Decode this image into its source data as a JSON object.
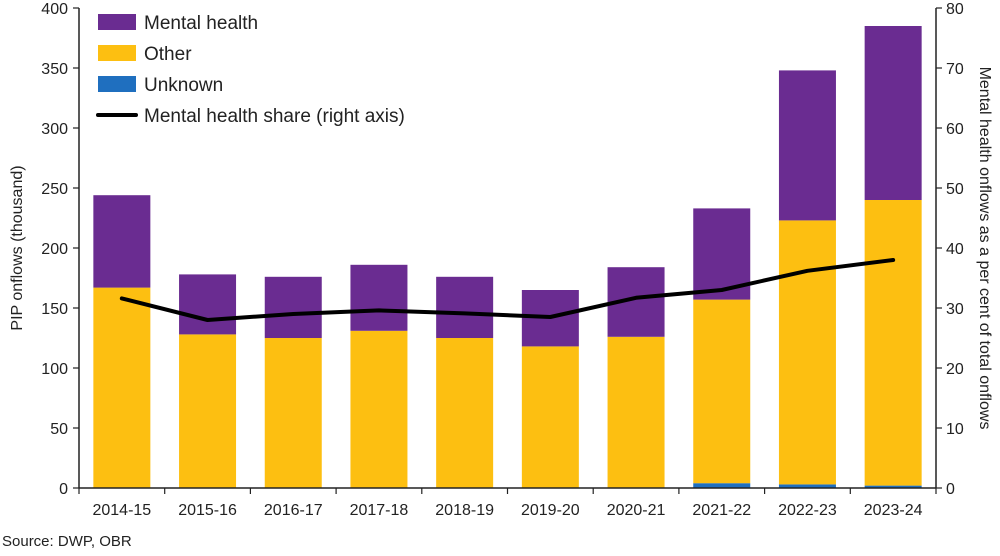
{
  "chart_data": {
    "type": "bar",
    "stacked": true,
    "categories": [
      "2014-15",
      "2015-16",
      "2016-17",
      "2017-18",
      "2018-19",
      "2019-20",
      "2020-21",
      "2021-22",
      "2022-23",
      "2023-24"
    ],
    "series": [
      {
        "name": "Unknown",
        "color": "#1f6fbf",
        "values": [
          0,
          0,
          0,
          0,
          0,
          0,
          0,
          4,
          3,
          2
        ]
      },
      {
        "name": "Other",
        "color": "#fdbf11",
        "values": [
          167,
          128,
          125,
          131,
          125,
          118,
          126,
          153,
          220,
          238
        ]
      },
      {
        "name": "Mental health",
        "color": "#6a2c91",
        "values": [
          77,
          50,
          51,
          55,
          51,
          47,
          58,
          76,
          125,
          145
        ]
      }
    ],
    "line_series": {
      "name": "Mental health share (right axis)",
      "color": "#000000",
      "axis": "right",
      "values": [
        31.6,
        28.0,
        29.0,
        29.6,
        29.1,
        28.5,
        31.7,
        33.0,
        36.2,
        38.0
      ]
    },
    "legend": [
      {
        "label": "Mental health",
        "kind": "box",
        "color": "#6a2c91"
      },
      {
        "label": "Other",
        "kind": "box",
        "color": "#fdbf11"
      },
      {
        "label": "Unknown",
        "kind": "box",
        "color": "#1f6fbf"
      },
      {
        "label": "Mental health share (right axis)",
        "kind": "line",
        "color": "#000000"
      }
    ],
    "legend_position": "top-left",
    "ylabel": "PIP onflows (thousand)",
    "y2label": "Mental health onflows as a per cent of total onflows",
    "ylim": [
      0,
      400
    ],
    "y2lim": [
      0,
      80
    ],
    "yticks": [
      0,
      50,
      100,
      150,
      200,
      250,
      300,
      350,
      400
    ],
    "y2ticks": [
      0,
      10,
      20,
      30,
      40,
      50,
      60,
      70,
      80
    ],
    "grid": false,
    "source": "Source: DWP, OBR"
  }
}
